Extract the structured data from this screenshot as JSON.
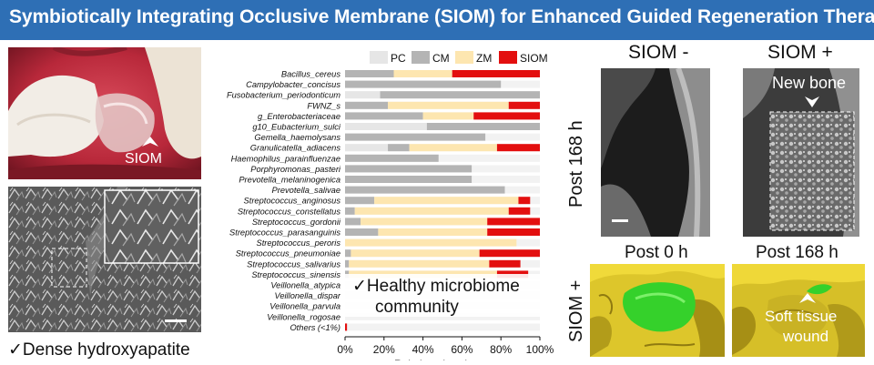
{
  "banner": {
    "title": "Symbiotically Integrating Occlusive Membrane (SIOM) for Enhanced Guided Regeneration Therapy",
    "bg": "#2e6fb5"
  },
  "left": {
    "photo_label": "SIOM",
    "sem_caption": "✓Dense hydroxyapatite"
  },
  "chart_data": {
    "type": "bar",
    "orientation": "horizontal",
    "stacked": true,
    "legend": [
      {
        "name": "PC",
        "color": "#e6e6e6"
      },
      {
        "name": "CM",
        "color": "#b4b4b4"
      },
      {
        "name": "ZM",
        "color": "#fde6b0"
      },
      {
        "name": "SIOM",
        "color": "#e30f0f"
      }
    ],
    "legend_position": "top",
    "categories": [
      "Bacillus_cereus",
      "Campylobacter_concisus",
      "Fusobacterium_periodonticum",
      "FWNZ_s",
      "g_Enterobacteriaceae",
      "g10_Eubacterium_sulci",
      "Gemella_haemolysans",
      "Granulicatella_adiacens",
      "Haemophilus_parainfluenzae",
      "Porphyromonas_pasteri",
      "Prevotella_melaninogenica",
      "Prevotella_salivae",
      "Streptococcus_anginosus",
      "Streptococcus_constellatus",
      "Streptococcus_gordonii",
      "Streptococcus_parasanguinis",
      "Streptococcus_peroris",
      "Streptococcus_pneumoniae",
      "Streptococcus_salivarius",
      "Streptococcus_sinensis",
      "Veillonella_atypica",
      "Veillonella_dispar",
      "Veillonella_parvula",
      "Veillonella_rogosae",
      "Others (<1%)"
    ],
    "series": [
      {
        "name": "PC",
        "values": [
          0,
          0,
          18,
          0,
          0,
          42,
          0,
          22,
          0,
          0,
          0,
          0,
          0,
          0,
          0,
          0,
          0,
          0,
          0,
          0,
          0,
          0,
          0,
          0,
          0
        ]
      },
      {
        "name": "CM",
        "values": [
          25,
          80,
          82,
          22,
          40,
          58,
          72,
          11,
          48,
          65,
          65,
          82,
          15,
          5,
          8,
          17,
          0,
          3,
          2,
          2,
          0,
          0,
          0,
          0,
          0
        ]
      },
      {
        "name": "ZM",
        "values": [
          30,
          0,
          0,
          62,
          26,
          0,
          0,
          45,
          0,
          0,
          0,
          0,
          74,
          79,
          65,
          56,
          88,
          66,
          72,
          76,
          0,
          0,
          0,
          0,
          0
        ]
      },
      {
        "name": "SIOM",
        "values": [
          45,
          0,
          0,
          16,
          34,
          0,
          0,
          22,
          0,
          0,
          0,
          0,
          6,
          11,
          27,
          27,
          0,
          31,
          16,
          16,
          0,
          0,
          0,
          0,
          1
        ]
      }
    ],
    "xlim": [
      0,
      100
    ],
    "xticks": [
      "0%",
      "20%",
      "40%",
      "60%",
      "80%",
      "100%"
    ],
    "xlabel": "Relative abundance",
    "ylabel": "",
    "grid": false,
    "annotation": [
      "✓Healthy microbiome",
      "community"
    ]
  },
  "right": {
    "col_left_title": "SIOM -",
    "col_right_title": "SIOM +",
    "row_label": "Post 168 h",
    "new_bone_label": "New bone",
    "bottom_left_title": "Post 0 h",
    "bottom_right_title": "Post 168 h",
    "bottom_row_label": "SIOM +",
    "wound_label": [
      "Soft tissue",
      "wound"
    ]
  }
}
